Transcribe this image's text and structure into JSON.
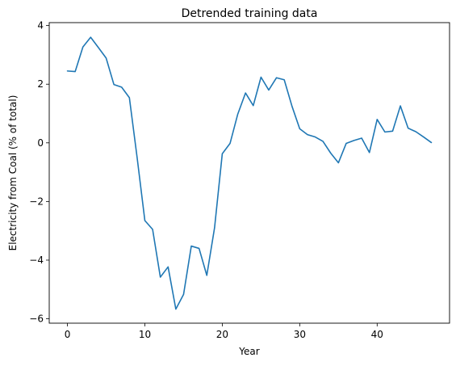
{
  "chart_data": {
    "type": "line",
    "title": "Detrended training data",
    "xlabel": "Year",
    "ylabel": "Electricity from Coal (% of total)",
    "xlim": [
      -2.35,
      49.35
    ],
    "ylim": [
      -6.15,
      4.1
    ],
    "xticks": [
      0,
      10,
      20,
      30,
      40
    ],
    "yticks": [
      -6,
      -4,
      -2,
      0,
      2,
      4
    ],
    "xtick_labels": [
      "0",
      "10",
      "20",
      "30",
      "40"
    ],
    "ytick_labels": [
      "−6",
      "−4",
      "−2",
      "0",
      "2",
      "4"
    ],
    "grid": false,
    "legend": "none",
    "series": [
      {
        "color": "#1f77b4",
        "x": [
          0,
          1,
          2,
          3,
          4,
          5,
          6,
          7,
          8,
          9,
          10,
          11,
          12,
          13,
          14,
          15,
          16,
          17,
          18,
          19,
          20,
          21,
          22,
          23,
          24,
          25,
          26,
          27,
          28,
          29,
          30,
          31,
          32,
          33,
          34,
          35,
          36,
          37,
          38,
          39,
          40,
          41,
          42,
          43,
          44,
          45,
          46,
          47
        ],
        "y": [
          2.45,
          2.43,
          3.27,
          3.6,
          3.25,
          2.89,
          1.99,
          1.9,
          1.54,
          -0.5,
          -2.65,
          -2.95,
          -4.58,
          -4.23,
          -5.67,
          -5.17,
          -3.52,
          -3.6,
          -4.52,
          -2.9,
          -0.37,
          -0.02,
          0.98,
          1.7,
          1.27,
          2.24,
          1.8,
          2.22,
          2.15,
          1.25,
          0.48,
          0.28,
          0.2,
          0.05,
          -0.35,
          -0.68,
          -0.02,
          0.08,
          0.16,
          -0.33,
          0.8,
          0.37,
          0.4,
          1.26,
          0.5,
          0.38,
          0.2,
          0.01
        ]
      }
    ]
  }
}
